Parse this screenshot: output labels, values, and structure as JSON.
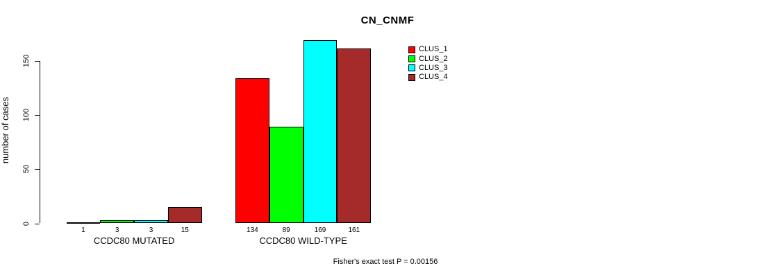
{
  "chart_data": {
    "type": "bar",
    "title": "CN_CNMF",
    "ylabel": "number of cases",
    "xlabel": "",
    "categories": [
      "CCDC80 MUTATED",
      "CCDC80 WILD-TYPE"
    ],
    "series": [
      {
        "name": "CLUS_1",
        "color": "#FF0000",
        "values": [
          1,
          134
        ]
      },
      {
        "name": "CLUS_2",
        "color": "#00FF00",
        "values": [
          3,
          89
        ]
      },
      {
        "name": "CLUS_3",
        "color": "#00FFFF",
        "values": [
          3,
          169
        ]
      },
      {
        "name": "CLUS_4",
        "color": "#A52A2A",
        "values": [
          15,
          161
        ]
      }
    ],
    "yticks": [
      0,
      50,
      100,
      150
    ],
    "ylim": [
      0,
      175
    ],
    "grid": false,
    "legend_position": "top-right-inside",
    "bar_value_labels": true,
    "annotation": "Fisher's exact test P = 0.00156"
  }
}
